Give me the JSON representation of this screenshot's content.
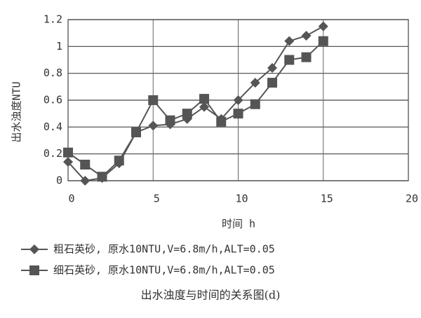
{
  "chart_data": {
    "type": "line",
    "caption": "出水浊度与时间的关系图(d)",
    "xlabel": "时间 h",
    "ylabel": "出水浊度NTU",
    "x": [
      0,
      1,
      2,
      3,
      4,
      5,
      6,
      7,
      8,
      9,
      10,
      11,
      12,
      13,
      14,
      15
    ],
    "series": [
      {
        "name": "粗石英砂, 原水10NTU,V=6.8m/h,ALT=0.05",
        "color": "#555555",
        "marker": "diamond",
        "values": [
          0.14,
          0,
          0.02,
          0.13,
          0.36,
          0.41,
          0.42,
          0.46,
          0.55,
          0.46,
          0.6,
          0.73,
          0.84,
          1.04,
          1.08,
          1.15
        ]
      },
      {
        "name": "细石英砂, 原水10NTU,V=6.8m/h,ALT=0.05",
        "color": "#555555",
        "marker": "square",
        "values": [
          0.21,
          0.12,
          0.03,
          0.15,
          0.36,
          0.6,
          0.45,
          0.5,
          0.61,
          0.44,
          0.5,
          0.57,
          0.73,
          0.9,
          0.92,
          1.04
        ]
      }
    ],
    "xlim": [
      0,
      20
    ],
    "xticks": [
      0,
      5,
      10,
      15,
      20
    ],
    "ylim": [
      0,
      1.2
    ],
    "yticks": [
      0,
      0.2,
      0.4,
      0.6,
      0.8,
      1,
      1.2
    ],
    "grid": true,
    "legend": "bottom"
  }
}
